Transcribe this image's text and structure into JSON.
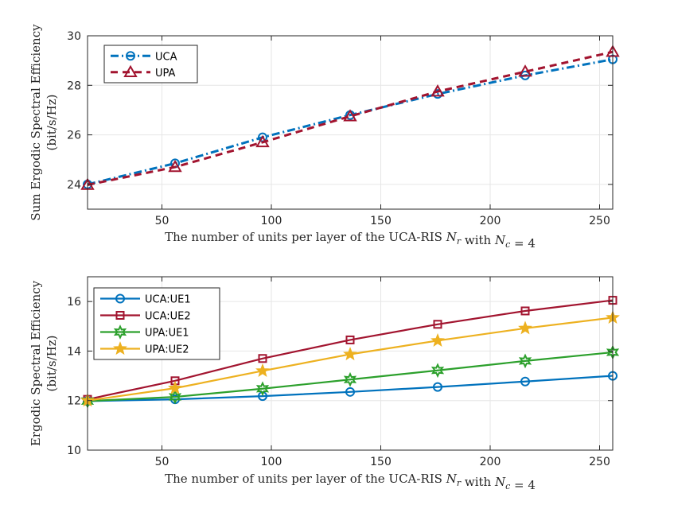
{
  "chart_data": [
    {
      "id": "top",
      "type": "line",
      "title": "",
      "xlabel": "The number of units per layer of the UCA-RIS N_r with N_c = 4",
      "ylabel_line1": "Sum Ergodic Spectral Efficiency",
      "ylabel_line2": "(bit/s/Hz)",
      "xlim": [
        16,
        256
      ],
      "ylim": [
        23,
        30
      ],
      "xticks": [
        50,
        100,
        150,
        200,
        250
      ],
      "yticks": [
        24,
        26,
        28,
        30
      ],
      "grid": true,
      "legend_position": "top-left",
      "x": [
        16,
        56,
        96,
        136,
        176,
        216,
        256
      ],
      "series": [
        {
          "name": "UCA",
          "color": "#0072BD",
          "marker": "circle",
          "line": "dashdot",
          "values": [
            24.0,
            24.85,
            25.9,
            26.8,
            27.65,
            28.4,
            29.05
          ]
        },
        {
          "name": "UPA",
          "color": "#A2142F",
          "marker": "triangle",
          "line": "dashed",
          "values": [
            23.98,
            24.7,
            25.7,
            26.75,
            27.75,
            28.55,
            29.35
          ]
        }
      ]
    },
    {
      "id": "bottom",
      "type": "line",
      "title": "",
      "xlabel": "The number of units per layer of the UCA-RIS N_r with N_c = 4",
      "ylabel_line1": "Ergodic Spectral Efficiency",
      "ylabel_line2": "(bit/s/Hz)",
      "xlim": [
        16,
        256
      ],
      "ylim": [
        10,
        17
      ],
      "xticks": [
        50,
        100,
        150,
        200,
        250
      ],
      "yticks": [
        10,
        12,
        14,
        16
      ],
      "grid": true,
      "legend_position": "top-left",
      "x": [
        16,
        56,
        96,
        136,
        176,
        216,
        256
      ],
      "series": [
        {
          "name": "UCA:UE1",
          "color": "#0072BD",
          "marker": "circle",
          "line": "solid",
          "values": [
            11.98,
            12.05,
            12.18,
            12.35,
            12.55,
            12.77,
            13.0
          ]
        },
        {
          "name": "UCA:UE2",
          "color": "#A2142F",
          "marker": "square",
          "line": "solid",
          "values": [
            12.05,
            12.8,
            13.7,
            14.45,
            15.08,
            15.62,
            16.05
          ]
        },
        {
          "name": "UPA:UE1",
          "color": "#2CA02C",
          "marker": "hexagram",
          "line": "solid",
          "values": [
            11.98,
            12.15,
            12.48,
            12.85,
            13.22,
            13.6,
            13.95
          ]
        },
        {
          "name": "UPA:UE2",
          "color": "#EDB120",
          "marker": "star",
          "line": "solid",
          "values": [
            12.0,
            12.5,
            13.2,
            13.87,
            14.42,
            14.92,
            15.35
          ]
        }
      ]
    }
  ]
}
